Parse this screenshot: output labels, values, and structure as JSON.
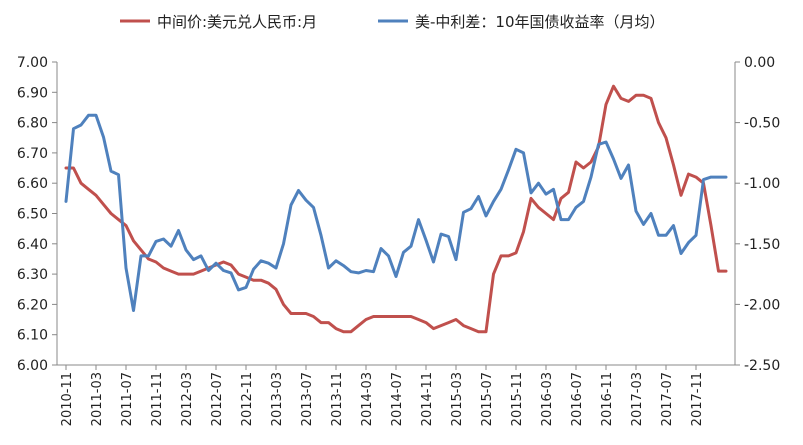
{
  "chart_data": {
    "type": "line",
    "title": "",
    "legend": {
      "placement": "top",
      "items": [
        "中间价:美元兑人民币:月",
        "美-中利差：10年国债收益率（月均）"
      ]
    },
    "x_tick_labels": [
      "2010-11",
      "2011-03",
      "2011-07",
      "2011-11",
      "2012-03",
      "2012-07",
      "2012-11",
      "2013-03",
      "2013-07",
      "2013-11",
      "2014-03",
      "2014-07",
      "2014-11",
      "2015-03",
      "2015-07",
      "2015-11",
      "2016-03",
      "2016-07",
      "2016-11",
      "2017-03",
      "2017-07",
      "2017-11"
    ],
    "x_months": [
      "2010-11",
      "2010-12",
      "2011-01",
      "2011-02",
      "2011-03",
      "2011-04",
      "2011-05",
      "2011-06",
      "2011-07",
      "2011-08",
      "2011-09",
      "2011-10",
      "2011-11",
      "2011-12",
      "2012-01",
      "2012-02",
      "2012-03",
      "2012-04",
      "2012-05",
      "2012-06",
      "2012-07",
      "2012-08",
      "2012-09",
      "2012-10",
      "2012-11",
      "2012-12",
      "2013-01",
      "2013-02",
      "2013-03",
      "2013-04",
      "2013-05",
      "2013-06",
      "2013-07",
      "2013-08",
      "2013-09",
      "2013-10",
      "2013-11",
      "2013-12",
      "2014-01",
      "2014-02",
      "2014-03",
      "2014-04",
      "2014-05",
      "2014-06",
      "2014-07",
      "2014-08",
      "2014-09",
      "2014-10",
      "2014-11",
      "2014-12",
      "2015-01",
      "2015-02",
      "2015-03",
      "2015-04",
      "2015-05",
      "2015-06",
      "2015-07",
      "2015-08",
      "2015-09",
      "2015-10",
      "2015-11",
      "2015-12",
      "2016-01",
      "2016-02",
      "2016-03",
      "2016-04",
      "2016-05",
      "2016-06",
      "2016-07",
      "2016-08",
      "2016-09",
      "2016-10",
      "2016-11",
      "2016-12",
      "2017-01",
      "2017-02",
      "2017-03",
      "2017-04",
      "2017-05",
      "2017-06",
      "2017-07",
      "2017-08",
      "2017-09",
      "2017-10",
      "2017-11",
      "2017-12",
      "2018-01",
      "2018-02",
      "2018-03"
    ],
    "left_axis": {
      "range": [
        6.0,
        7.0
      ],
      "ticks": [
        "6.00",
        "6.10",
        "6.20",
        "6.30",
        "6.40",
        "6.50",
        "6.60",
        "6.70",
        "6.80",
        "6.90",
        "7.00"
      ]
    },
    "right_axis": {
      "range": [
        -2.5,
        0.0
      ],
      "ticks": [
        "-2.50",
        "-2.00",
        "-1.50",
        "-1.00",
        "-0.50",
        "0.00"
      ]
    },
    "grid": false,
    "series": [
      {
        "name": "中间价:美元兑人民币:月",
        "color": "#c0504d",
        "axis": "left",
        "values": [
          6.65,
          6.65,
          6.6,
          6.58,
          6.56,
          6.53,
          6.5,
          6.48,
          6.46,
          6.41,
          6.38,
          6.35,
          6.34,
          6.32,
          6.31,
          6.3,
          6.3,
          6.3,
          6.31,
          6.32,
          6.33,
          6.34,
          6.33,
          6.3,
          6.29,
          6.28,
          6.28,
          6.27,
          6.25,
          6.2,
          6.17,
          6.17,
          6.17,
          6.16,
          6.14,
          6.14,
          6.12,
          6.11,
          6.11,
          6.13,
          6.15,
          6.16,
          6.16,
          6.16,
          6.16,
          6.16,
          6.16,
          6.15,
          6.14,
          6.12,
          6.13,
          6.14,
          6.15,
          6.13,
          6.12,
          6.11,
          6.11,
          6.3,
          6.36,
          6.36,
          6.37,
          6.44,
          6.55,
          6.52,
          6.5,
          6.48,
          6.55,
          6.57,
          6.67,
          6.65,
          6.67,
          6.72,
          6.86,
          6.92,
          6.88,
          6.87,
          6.89,
          6.89,
          6.88,
          6.8,
          6.75,
          6.66,
          6.56,
          6.63,
          6.62,
          6.6,
          6.46,
          6.31,
          6.31
        ]
      },
      {
        "name": "美-中利差：10年国债收益率（月均）",
        "color": "#4f81bd",
        "axis": "right",
        "values": [
          -1.15,
          -0.55,
          -0.52,
          -0.44,
          -0.44,
          -0.62,
          -0.9,
          -0.93,
          -1.7,
          -2.05,
          -1.6,
          -1.6,
          -1.48,
          -1.46,
          -1.52,
          -1.39,
          -1.55,
          -1.63,
          -1.6,
          -1.72,
          -1.66,
          -1.72,
          -1.74,
          -1.88,
          -1.86,
          -1.71,
          -1.64,
          -1.66,
          -1.7,
          -1.5,
          -1.18,
          -1.06,
          -1.14,
          -1.2,
          -1.43,
          -1.7,
          -1.64,
          -1.68,
          -1.73,
          -1.74,
          -1.72,
          -1.73,
          -1.54,
          -1.6,
          -1.77,
          -1.57,
          -1.52,
          -1.3,
          -1.47,
          -1.65,
          -1.42,
          -1.44,
          -1.63,
          -1.24,
          -1.21,
          -1.11,
          -1.27,
          -1.15,
          -1.05,
          -0.89,
          -0.72,
          -0.75,
          -1.08,
          -1.0,
          -1.09,
          -1.05,
          -1.3,
          -1.3,
          -1.2,
          -1.15,
          -0.95,
          -0.68,
          -0.66,
          -0.8,
          -0.96,
          -0.85,
          -1.23,
          -1.34,
          -1.25,
          -1.43,
          -1.43,
          -1.35,
          -1.58,
          -1.49,
          -1.43,
          -0.97,
          -0.95,
          -0.95,
          -0.95
        ]
      }
    ]
  }
}
